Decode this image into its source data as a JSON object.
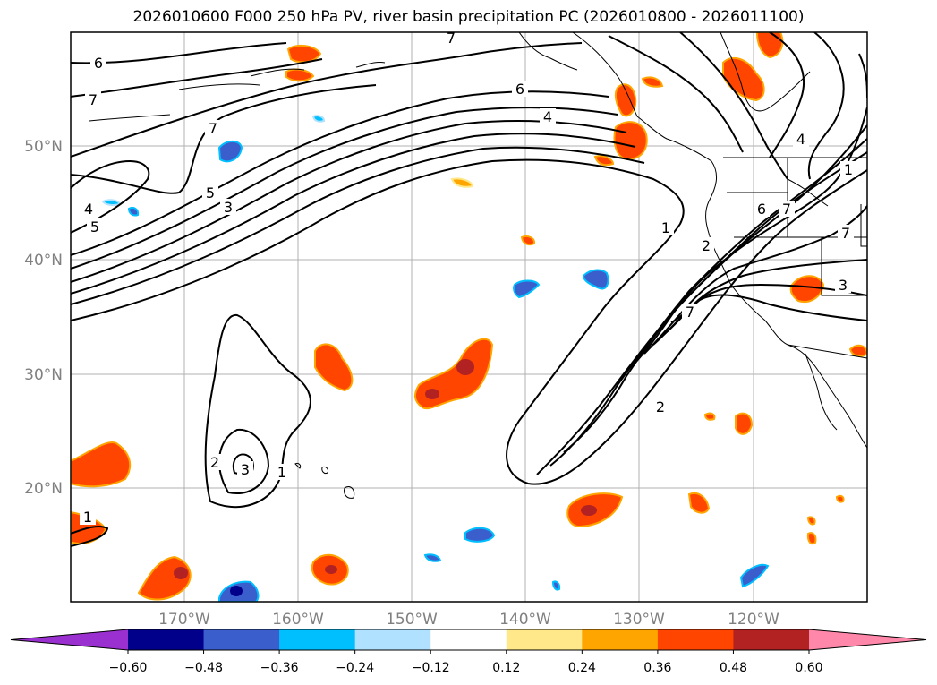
{
  "title": "2026010600 F000 250 hPa PV, river basin precipitation PC (2026010800 - 2026011100)",
  "lat_labels": [
    "50°N",
    "40°N",
    "30°N",
    "20°N"
  ],
  "lon_labels": [
    "170°W",
    "160°W",
    "150°W",
    "140°W",
    "130°W",
    "120°W"
  ],
  "colorbar": {
    "ticks": [
      "−0.60",
      "−0.48",
      "−0.36",
      "−0.24",
      "−0.12",
      "0.12",
      "0.24",
      "0.36",
      "0.48",
      "0.60"
    ],
    "colors": [
      "#9b30d0",
      "#00008b",
      "#3a5fcd",
      "#00bfff",
      "#b0e2ff",
      "#ffffff",
      "#ffe88a",
      "#ffa500",
      "#ff4500",
      "#b22222",
      "#ff88aa"
    ]
  },
  "contour_labels": [
    {
      "text": "6",
      "key": "a"
    },
    {
      "text": "7",
      "key": "b"
    },
    {
      "text": "7",
      "key": "c"
    },
    {
      "text": "7",
      "key": "d"
    },
    {
      "text": "6",
      "key": "e"
    },
    {
      "text": "4",
      "key": "f"
    },
    {
      "text": "5",
      "key": "g"
    },
    {
      "text": "3",
      "key": "h"
    },
    {
      "text": "4",
      "key": "i"
    },
    {
      "text": "5",
      "key": "j"
    },
    {
      "text": "1",
      "key": "k"
    },
    {
      "text": "2",
      "key": "l"
    },
    {
      "text": "6",
      "key": "m"
    },
    {
      "text": "7",
      "key": "n"
    },
    {
      "text": "7",
      "key": "o"
    },
    {
      "text": "3",
      "key": "p"
    },
    {
      "text": "7",
      "key": "q"
    },
    {
      "text": "2",
      "key": "r"
    },
    {
      "text": "2",
      "key": "s"
    },
    {
      "text": "3",
      "key": "t"
    },
    {
      "text": "1",
      "key": "u"
    },
    {
      "text": "1",
      "key": "v"
    },
    {
      "text": "4",
      "key": "w"
    },
    {
      "text": "1",
      "key": "x"
    }
  ]
}
